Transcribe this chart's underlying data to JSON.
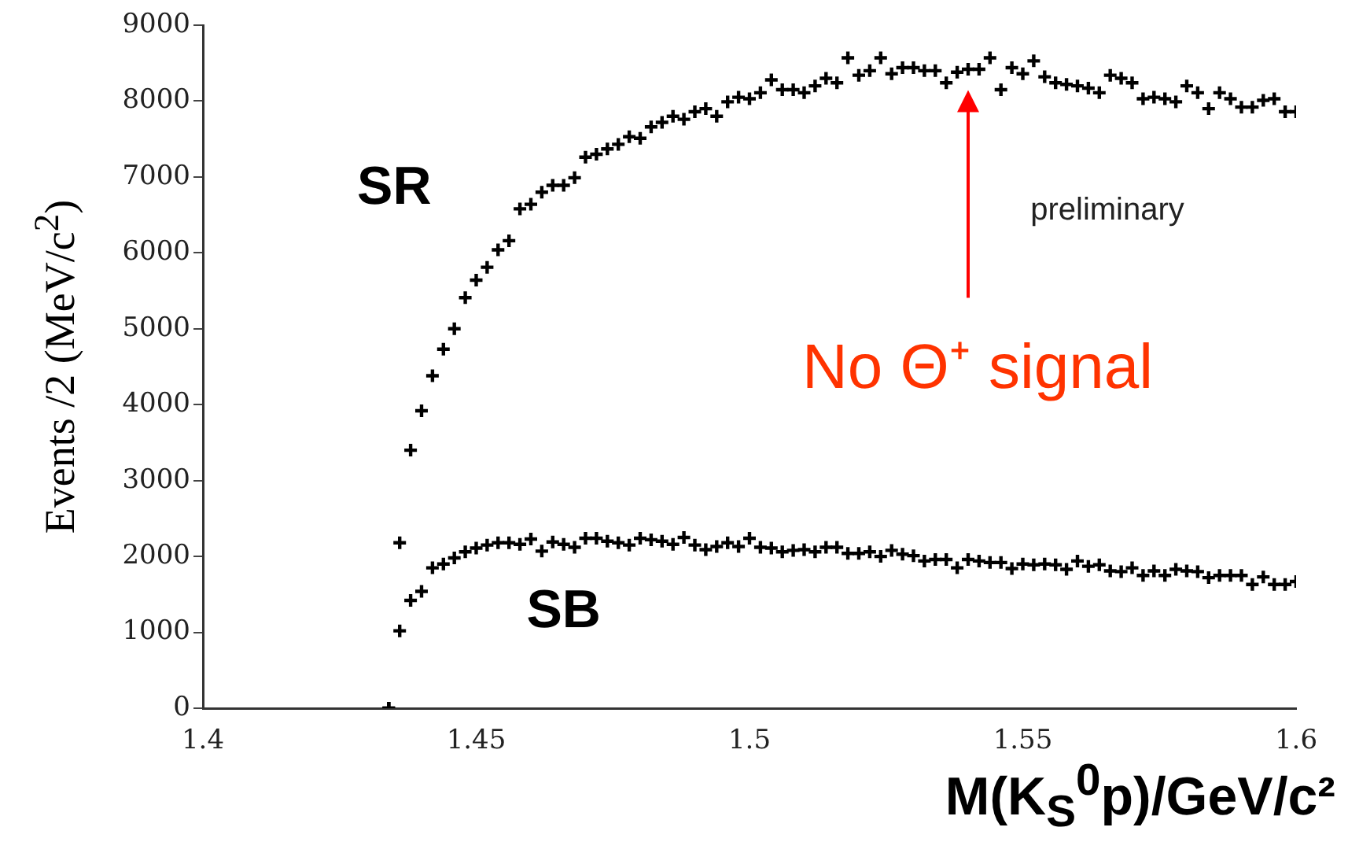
{
  "chart_data": {
    "type": "scatter",
    "xlabel": "M(K$_{S}$$^{0}$p)/GeV/c²",
    "ylabel": "Events /2 (MeV/c$^{2}$)",
    "x": [
      1.434,
      1.436,
      1.438,
      1.44,
      1.442,
      1.444,
      1.446,
      1.448,
      1.45,
      1.452,
      1.454,
      1.456,
      1.458,
      1.46,
      1.462,
      1.464,
      1.466,
      1.468,
      1.47,
      1.472,
      1.474,
      1.476,
      1.478,
      1.48,
      1.482,
      1.484,
      1.486,
      1.488,
      1.49,
      1.492,
      1.494,
      1.496,
      1.498,
      1.5,
      1.502,
      1.504,
      1.506,
      1.508,
      1.51,
      1.512,
      1.514,
      1.516,
      1.518,
      1.52,
      1.522,
      1.524,
      1.526,
      1.528,
      1.53,
      1.532,
      1.534,
      1.536,
      1.538,
      1.54,
      1.542,
      1.544,
      1.546,
      1.548,
      1.55,
      1.552,
      1.554,
      1.556,
      1.558,
      1.56,
      1.562,
      1.564,
      1.566,
      1.568,
      1.57,
      1.572,
      1.574,
      1.576,
      1.578,
      1.58,
      1.582,
      1.584,
      1.586,
      1.588,
      1.59,
      1.592,
      1.594,
      1.596,
      1.598,
      1.6
    ],
    "series": [
      {
        "name": "SR",
        "color": "#000000",
        "values": [
          0,
          2180,
          3400,
          3920,
          4380,
          4730,
          5000,
          5410,
          5640,
          5810,
          6040,
          6160,
          6580,
          6640,
          6800,
          6890,
          6890,
          6990,
          7260,
          7300,
          7370,
          7430,
          7530,
          7510,
          7660,
          7720,
          7800,
          7760,
          7860,
          7900,
          7800,
          7990,
          8050,
          8030,
          8110,
          8280,
          8150,
          8150,
          8110,
          8200,
          8300,
          8240,
          8570,
          8340,
          8400,
          8570,
          8360,
          8440,
          8440,
          8400,
          8400,
          8240,
          8380,
          8420,
          8420,
          8570,
          8150,
          8440,
          8360,
          8530,
          8320,
          8240,
          8220,
          8200,
          8170,
          8110,
          8340,
          8300,
          8240,
          8030,
          8050,
          8030,
          7990,
          8200,
          8110,
          7900,
          8110,
          8030,
          7920,
          7920,
          8010,
          8030,
          7860,
          7860
        ]
      },
      {
        "name": "SB",
        "color": "#000000",
        "values": [
          0,
          1020,
          1420,
          1540,
          1850,
          1900,
          1980,
          2060,
          2110,
          2150,
          2180,
          2180,
          2160,
          2230,
          2070,
          2190,
          2160,
          2120,
          2240,
          2240,
          2200,
          2180,
          2150,
          2240,
          2220,
          2200,
          2160,
          2250,
          2150,
          2090,
          2130,
          2180,
          2130,
          2240,
          2120,
          2110,
          2060,
          2080,
          2090,
          2060,
          2120,
          2120,
          2040,
          2040,
          2060,
          2000,
          2080,
          2030,
          2010,
          1940,
          1960,
          1960,
          1850,
          1960,
          1940,
          1920,
          1920,
          1840,
          1900,
          1890,
          1900,
          1890,
          1830,
          1940,
          1870,
          1890,
          1810,
          1800,
          1850,
          1750,
          1810,
          1750,
          1830,
          1810,
          1800,
          1720,
          1750,
          1750,
          1750,
          1630,
          1730,
          1630,
          1630,
          1670
        ]
      }
    ],
    "xlim": [
      1.4,
      1.6
    ],
    "xticks": [
      1.4,
      1.45,
      1.5,
      1.55,
      1.6
    ],
    "ylim": [
      0,
      9000
    ],
    "yticks": [
      0,
      1000,
      2000,
      3000,
      4000,
      5000,
      6000,
      7000,
      8000,
      9000
    ],
    "marker": "cross",
    "legend": false,
    "grid": false,
    "annotations": [
      "No Θ⁺ signal",
      "preliminary"
    ]
  }
}
